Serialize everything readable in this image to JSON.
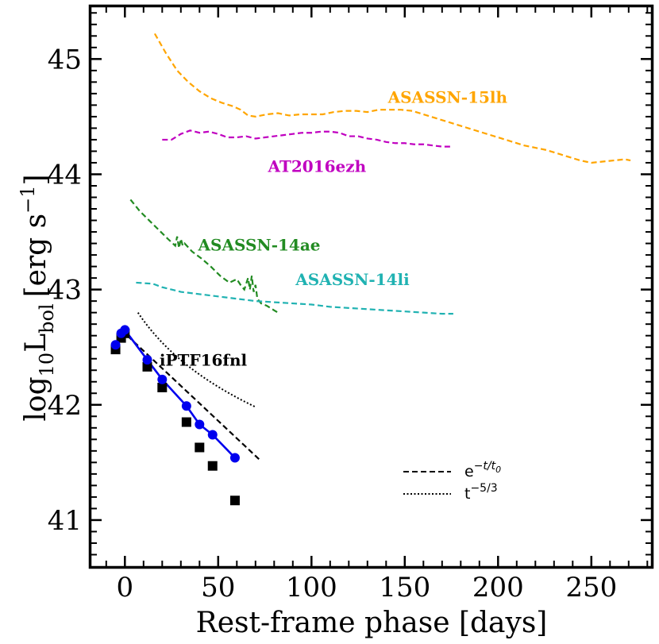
{
  "chart_data": {
    "type": "line",
    "title": "",
    "xlabel": "Rest-frame phase [days]",
    "ylabel_main": "log",
    "ylabel_sub": "10",
    "ylabel_mid": "L",
    "ylabel_sub2": "bol",
    "ylabel_unit": "[erg s",
    "ylabel_sup": "−1",
    "ylabel_close": "]",
    "xlim": [
      -18,
      282
    ],
    "ylim": [
      40.6,
      45.45
    ],
    "xticks": [
      0,
      50,
      100,
      150,
      200,
      250
    ],
    "xtick_labels": [
      "0",
      "50",
      "100",
      "150",
      "200",
      "250"
    ],
    "yticks": [
      41,
      42,
      43,
      44,
      45
    ],
    "ytick_labels": [
      "41",
      "42",
      "43",
      "44",
      "45"
    ],
    "grid": false,
    "series": [
      {
        "name": "ASASSN-15lh",
        "color": "#ffa500",
        "style": "dashed",
        "label_pos": [
          173,
          44.62
        ],
        "x": [
          16,
          22,
          28,
          34,
          40,
          46,
          52,
          58,
          62,
          66,
          70,
          76,
          82,
          88,
          94,
          100,
          106,
          112,
          118,
          124,
          130,
          136,
          142,
          148,
          154,
          160,
          166,
          172,
          178,
          184,
          190,
          196,
          202,
          208,
          214,
          220,
          226,
          232,
          238,
          244,
          250,
          256,
          262,
          268,
          271
        ],
        "y": [
          45.22,
          45.05,
          44.9,
          44.8,
          44.72,
          44.66,
          44.62,
          44.59,
          44.56,
          44.51,
          44.5,
          44.52,
          44.53,
          44.51,
          44.52,
          44.52,
          44.52,
          44.54,
          44.55,
          44.55,
          44.54,
          44.56,
          44.56,
          44.56,
          44.55,
          44.52,
          44.49,
          44.46,
          44.43,
          44.4,
          44.37,
          44.34,
          44.31,
          44.28,
          44.25,
          44.23,
          44.21,
          44.18,
          44.15,
          44.12,
          44.1,
          44.11,
          44.12,
          44.13,
          44.12
        ]
      },
      {
        "name": "AT2016ezh",
        "color": "#c000c0",
        "style": "dashed",
        "label_pos": [
          103,
          44.02
        ],
        "x": [
          20,
          25,
          30,
          35,
          40,
          45,
          50,
          55,
          60,
          65,
          70,
          75,
          80,
          85,
          90,
          95,
          100,
          105,
          110,
          115,
          120,
          125,
          130,
          135,
          140,
          145,
          150,
          155,
          160,
          165,
          170,
          175
        ],
        "y": [
          44.3,
          44.3,
          44.35,
          44.38,
          44.36,
          44.37,
          44.35,
          44.32,
          44.32,
          44.33,
          44.31,
          44.32,
          44.33,
          44.34,
          44.35,
          44.36,
          44.36,
          44.37,
          44.37,
          44.36,
          44.33,
          44.33,
          44.31,
          44.3,
          44.28,
          44.27,
          44.27,
          44.26,
          44.26,
          44.25,
          44.24,
          44.24
        ]
      },
      {
        "name": "ASASSN-14ae",
        "color": "#228b22",
        "style": "dashed",
        "label_pos": [
          72,
          43.34
        ],
        "x": [
          3,
          8,
          13,
          18,
          23,
          27,
          28,
          29,
          30,
          31,
          32,
          36,
          41,
          46,
          51,
          56,
          60,
          62,
          64,
          66,
          67,
          68,
          69,
          70,
          71,
          73,
          76,
          80,
          82
        ],
        "y": [
          43.78,
          43.68,
          43.6,
          43.52,
          43.44,
          43.38,
          43.46,
          43.36,
          43.44,
          43.38,
          43.4,
          43.33,
          43.27,
          43.2,
          43.12,
          43.06,
          43.09,
          43.04,
          43.0,
          43.1,
          43.0,
          43.12,
          42.98,
          43.04,
          42.92,
          42.88,
          42.86,
          42.82,
          42.8
        ]
      },
      {
        "name": "ASASSN-14li",
        "color": "#20b2b2",
        "style": "dashed",
        "label_pos": [
          122,
          43.04
        ],
        "x": [
          6,
          15,
          20,
          30,
          40,
          50,
          60,
          70,
          80,
          90,
          100,
          110,
          120,
          130,
          140,
          150,
          160,
          170,
          176
        ],
        "y": [
          43.06,
          43.05,
          43.02,
          42.98,
          42.96,
          42.94,
          42.92,
          42.9,
          42.89,
          42.88,
          42.87,
          42.85,
          42.84,
          42.83,
          42.82,
          42.81,
          42.8,
          42.79,
          42.79
        ]
      },
      {
        "name": "iPTF16fnl",
        "color": "#000000",
        "style": "none",
        "label_pos": [
          42,
          42.34
        ],
        "markers": {
          "black_squares": {
            "x": [
              -5,
              -2,
              0,
              12,
              20,
              33,
              40,
              47,
              59
            ],
            "y": [
              42.48,
              42.58,
              42.62,
              42.33,
              42.15,
              41.85,
              41.63,
              41.47,
              41.17
            ]
          },
          "blue_circles": {
            "x": [
              -5,
              -2,
              0,
              12,
              20,
              33,
              40,
              47,
              59
            ],
            "y": [
              42.52,
              42.62,
              42.65,
              42.39,
              42.22,
              41.99,
              41.83,
              41.74,
              41.54
            ]
          }
        }
      }
    ],
    "fits": {
      "exponential": {
        "label_base": "e",
        "label_exp": "−t/t",
        "label_exp_sub": "0",
        "color": "#000000",
        "style": "dashed",
        "x_range": [
          -2,
          72
        ],
        "t_peak": 0,
        "L_peak": 42.62,
        "t0_days": 28.6
      },
      "power_law": {
        "label_base": "t",
        "label_exp": "−5/3",
        "color": "#000000",
        "style": "dotted",
        "x_range": [
          7,
          70
        ]
      },
      "blue_fit": {
        "color": "#0000ee",
        "style": "solid"
      }
    },
    "legend_position": "lower-right"
  }
}
